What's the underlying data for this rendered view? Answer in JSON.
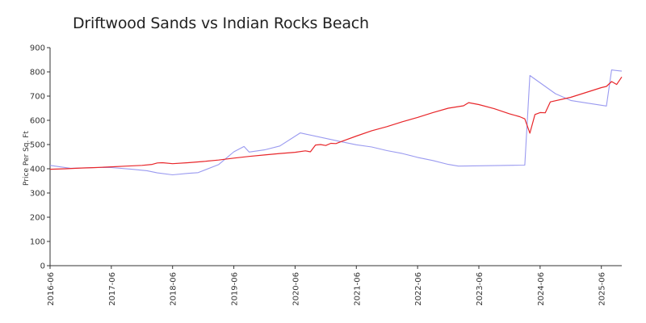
{
  "chart_data": {
    "type": "line",
    "title": "Driftwood Sands vs Indian Rocks Beach",
    "xlabel": "",
    "ylabel": "Price Per Sq. Ft",
    "ylim": [
      0,
      900
    ],
    "xlim": [
      "2016-06",
      "2025-10"
    ],
    "y_ticks": [
      "0",
      "100",
      "200",
      "300",
      "400",
      "500",
      "600",
      "700",
      "800",
      "900"
    ],
    "x_ticks": [
      "2016-06",
      "2017-06",
      "2018-06",
      "2019-06",
      "2020-06",
      "2021-06",
      "2022-06",
      "2023-06",
      "2024-06",
      "2025-06"
    ],
    "grid": false,
    "legend": "none",
    "series": [
      {
        "color": "#e8262a",
        "points": [
          [
            "2016-06",
            398
          ],
          [
            "2016-09",
            400
          ],
          [
            "2016-12",
            403
          ],
          [
            "2017-03",
            405
          ],
          [
            "2017-06",
            408
          ],
          [
            "2017-09",
            411
          ],
          [
            "2017-12",
            414
          ],
          [
            "2018-02",
            418
          ],
          [
            "2018-03",
            424
          ],
          [
            "2018-04",
            425
          ],
          [
            "2018-06",
            421
          ],
          [
            "2018-09",
            425
          ],
          [
            "2018-12",
            430
          ],
          [
            "2019-03",
            436
          ],
          [
            "2019-06",
            444
          ],
          [
            "2019-09",
            451
          ],
          [
            "2019-12",
            457
          ],
          [
            "2020-03",
            463
          ],
          [
            "2020-06",
            468
          ],
          [
            "2020-08",
            474
          ],
          [
            "2020-09",
            470
          ],
          [
            "2020-10",
            498
          ],
          [
            "2020-11",
            500
          ],
          [
            "2020-12",
            496
          ],
          [
            "2021-01",
            505
          ],
          [
            "2021-02",
            504
          ],
          [
            "2021-03",
            512
          ],
          [
            "2021-06",
            535
          ],
          [
            "2021-09",
            557
          ],
          [
            "2021-12",
            574
          ],
          [
            "2022-03",
            594
          ],
          [
            "2022-06",
            612
          ],
          [
            "2022-09",
            632
          ],
          [
            "2022-12",
            650
          ],
          [
            "2023-03",
            660
          ],
          [
            "2023-04",
            673
          ],
          [
            "2023-06",
            665
          ],
          [
            "2023-09",
            648
          ],
          [
            "2023-12",
            627
          ],
          [
            "2024-02",
            615
          ],
          [
            "2024-03",
            606
          ],
          [
            "2024-04",
            547
          ],
          [
            "2024-05",
            624
          ],
          [
            "2024-06",
            632
          ],
          [
            "2024-07",
            631
          ],
          [
            "2024-08",
            676
          ],
          [
            "2024-12",
            695
          ],
          [
            "2025-03",
            715
          ],
          [
            "2025-06",
            735
          ],
          [
            "2025-07",
            740
          ],
          [
            "2025-08",
            760
          ],
          [
            "2025-09",
            748
          ],
          [
            "2025-10",
            779
          ]
        ]
      },
      {
        "color": "#9a9af0",
        "points": [
          [
            "2016-06",
            414
          ],
          [
            "2016-10",
            402
          ],
          [
            "2017-03",
            405
          ],
          [
            "2017-06",
            405
          ],
          [
            "2017-10",
            398
          ],
          [
            "2018-01",
            392
          ],
          [
            "2018-03",
            383
          ],
          [
            "2018-06",
            375
          ],
          [
            "2018-09",
            381
          ],
          [
            "2018-11",
            384
          ],
          [
            "2019-03",
            417
          ],
          [
            "2019-06",
            470
          ],
          [
            "2019-08",
            492
          ],
          [
            "2019-09",
            469
          ],
          [
            "2019-12",
            478
          ],
          [
            "2020-03",
            494
          ],
          [
            "2020-07",
            548
          ],
          [
            "2021-03",
            512
          ],
          [
            "2021-06",
            499
          ],
          [
            "2021-09",
            490
          ],
          [
            "2021-12",
            475
          ],
          [
            "2022-03",
            463
          ],
          [
            "2022-06",
            447
          ],
          [
            "2022-09",
            434
          ],
          [
            "2022-12",
            418
          ],
          [
            "2023-02",
            411
          ],
          [
            "2023-09",
            413
          ],
          [
            "2024-03",
            415
          ],
          [
            "2024-04",
            785
          ],
          [
            "2024-09",
            710
          ],
          [
            "2024-12",
            682
          ],
          [
            "2025-03",
            672
          ],
          [
            "2025-07",
            659
          ],
          [
            "2025-08",
            808
          ],
          [
            "2025-10",
            803
          ]
        ]
      }
    ]
  }
}
